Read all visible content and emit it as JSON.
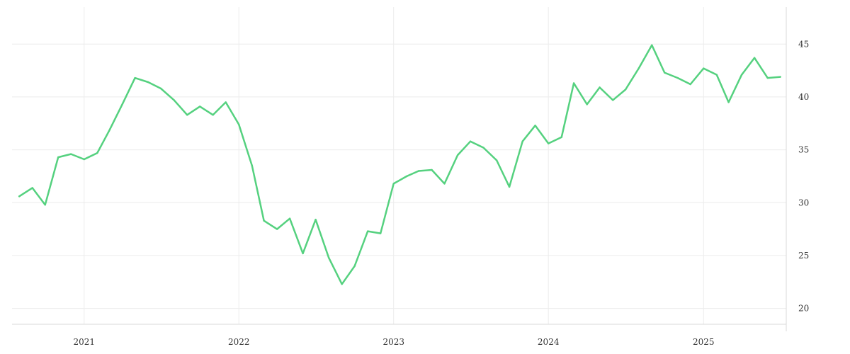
{
  "chart_data": {
    "type": "line",
    "title": "",
    "xlabel": "",
    "ylabel": "",
    "x_ticks": [
      "2021",
      "2022",
      "2023",
      "2024",
      "2025"
    ],
    "y_ticks": [
      20,
      25,
      30,
      35,
      40,
      45
    ],
    "xlim": [
      "2020-07-15",
      "2025-07-15"
    ],
    "ylim": [
      18.5,
      48.5
    ],
    "y_axis_position": "right",
    "grid": true,
    "legend": "none",
    "series": [
      {
        "color": "#55d17f",
        "points": [
          [
            "2020-08-01",
            30.6
          ],
          [
            "2020-09-01",
            31.4
          ],
          [
            "2020-10-01",
            29.8
          ],
          [
            "2020-11-01",
            34.3
          ],
          [
            "2020-12-01",
            34.6
          ],
          [
            "2021-01-01",
            34.1
          ],
          [
            "2021-02-01",
            34.7
          ],
          [
            "2021-03-01",
            36.8
          ],
          [
            "2021-04-01",
            39.3
          ],
          [
            "2021-05-01",
            41.8
          ],
          [
            "2021-06-01",
            41.4
          ],
          [
            "2021-07-01",
            40.8
          ],
          [
            "2021-08-01",
            39.7
          ],
          [
            "2021-09-01",
            38.3
          ],
          [
            "2021-10-01",
            39.1
          ],
          [
            "2021-11-01",
            38.3
          ],
          [
            "2021-12-01",
            39.5
          ],
          [
            "2022-01-01",
            37.4
          ],
          [
            "2022-02-01",
            33.5
          ],
          [
            "2022-03-01",
            28.3
          ],
          [
            "2022-04-01",
            27.5
          ],
          [
            "2022-05-01",
            28.5
          ],
          [
            "2022-06-01",
            25.2
          ],
          [
            "2022-07-01",
            28.4
          ],
          [
            "2022-08-01",
            24.8
          ],
          [
            "2022-09-01",
            22.3
          ],
          [
            "2022-10-01",
            24.0
          ],
          [
            "2022-11-01",
            27.3
          ],
          [
            "2022-12-01",
            27.1
          ],
          [
            "2023-01-01",
            31.8
          ],
          [
            "2023-02-01",
            32.5
          ],
          [
            "2023-03-01",
            33.0
          ],
          [
            "2023-04-01",
            33.1
          ],
          [
            "2023-05-01",
            31.8
          ],
          [
            "2023-06-01",
            34.5
          ],
          [
            "2023-07-01",
            35.8
          ],
          [
            "2023-08-01",
            35.2
          ],
          [
            "2023-09-01",
            34.0
          ],
          [
            "2023-10-01",
            31.5
          ],
          [
            "2023-11-01",
            35.8
          ],
          [
            "2023-12-01",
            37.3
          ],
          [
            "2024-01-01",
            35.6
          ],
          [
            "2024-02-01",
            36.2
          ],
          [
            "2024-03-01",
            41.3
          ],
          [
            "2024-04-01",
            39.3
          ],
          [
            "2024-05-01",
            40.9
          ],
          [
            "2024-06-01",
            39.7
          ],
          [
            "2024-07-01",
            40.7
          ],
          [
            "2024-08-01",
            42.7
          ],
          [
            "2024-09-01",
            44.9
          ],
          [
            "2024-10-01",
            42.3
          ],
          [
            "2024-11-01",
            41.8
          ],
          [
            "2024-12-01",
            41.2
          ],
          [
            "2025-01-01",
            42.7
          ],
          [
            "2025-02-01",
            42.1
          ],
          [
            "2025-03-01",
            39.5
          ],
          [
            "2025-04-01",
            42.1
          ],
          [
            "2025-05-01",
            43.7
          ],
          [
            "2025-06-01",
            41.8
          ],
          [
            "2025-07-01",
            41.9
          ]
        ]
      }
    ]
  }
}
